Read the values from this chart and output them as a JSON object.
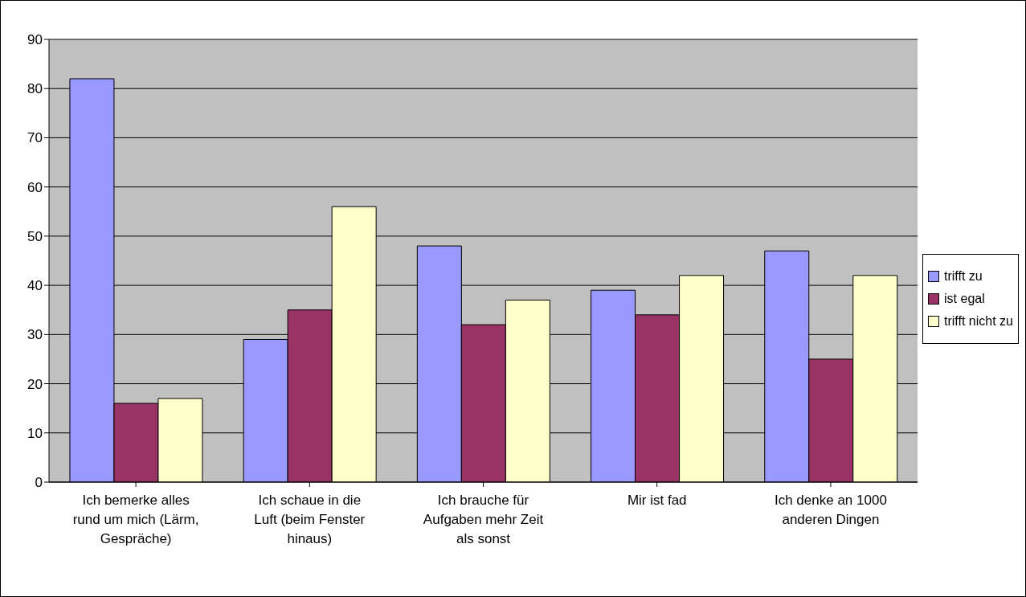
{
  "chart_data": {
    "type": "bar",
    "categories": [
      "Ich bemerke alles rund um mich (Lärm, Gespräche)",
      "Ich schaue in die Luft (beim Fenster hinaus)",
      "Ich brauche für Aufgaben mehr Zeit als sonst",
      "Mir ist fad",
      "Ich denke an 1000 anderen Dingen"
    ],
    "series": [
      {
        "name": "trifft zu",
        "color": "#9999ff",
        "values": [
          82,
          29,
          48,
          39,
          47
        ]
      },
      {
        "name": "ist egal",
        "color": "#993366",
        "values": [
          16,
          35,
          32,
          34,
          25
        ]
      },
      {
        "name": "trifft nicht zu",
        "color": "#ffffcc",
        "values": [
          17,
          56,
          37,
          42,
          42
        ]
      }
    ],
    "ylim": [
      0,
      90
    ],
    "yticks": [
      0,
      10,
      20,
      30,
      40,
      50,
      60,
      70,
      80,
      90
    ],
    "grid": "y",
    "legend": "right"
  }
}
